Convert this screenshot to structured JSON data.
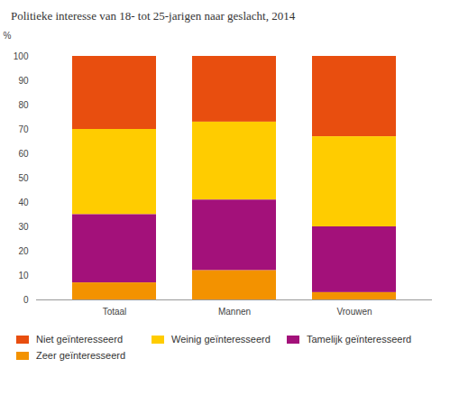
{
  "chart_data": {
    "type": "bar",
    "title": "Politieke interesse van 18- tot 25-jarigen naar geslacht, 2014",
    "stacked": true,
    "categories": [
      "Totaal",
      "Mannen",
      "Vrouwen"
    ],
    "series": [
      {
        "name": "Niet geïnteresseerd",
        "color": "#e84e0f",
        "values": [
          30,
          27,
          33
        ]
      },
      {
        "name": "Weinig geïnteresseerd",
        "color": "#ffcc00",
        "values": [
          35,
          32,
          37
        ]
      },
      {
        "name": "Tamelijk geïnteresseerd",
        "color": "#a3117a",
        "values": [
          28,
          29,
          27
        ]
      },
      {
        "name": "Zeer geïnteresseerd",
        "color": "#f39200",
        "values": [
          7,
          12,
          3
        ]
      }
    ],
    "y_label": "%",
    "ylim": [
      0,
      100
    ],
    "yticks": [
      0,
      10,
      20,
      30,
      40,
      50,
      60,
      70,
      80,
      90,
      100
    ],
    "grid": false,
    "legend": "bottom"
  }
}
